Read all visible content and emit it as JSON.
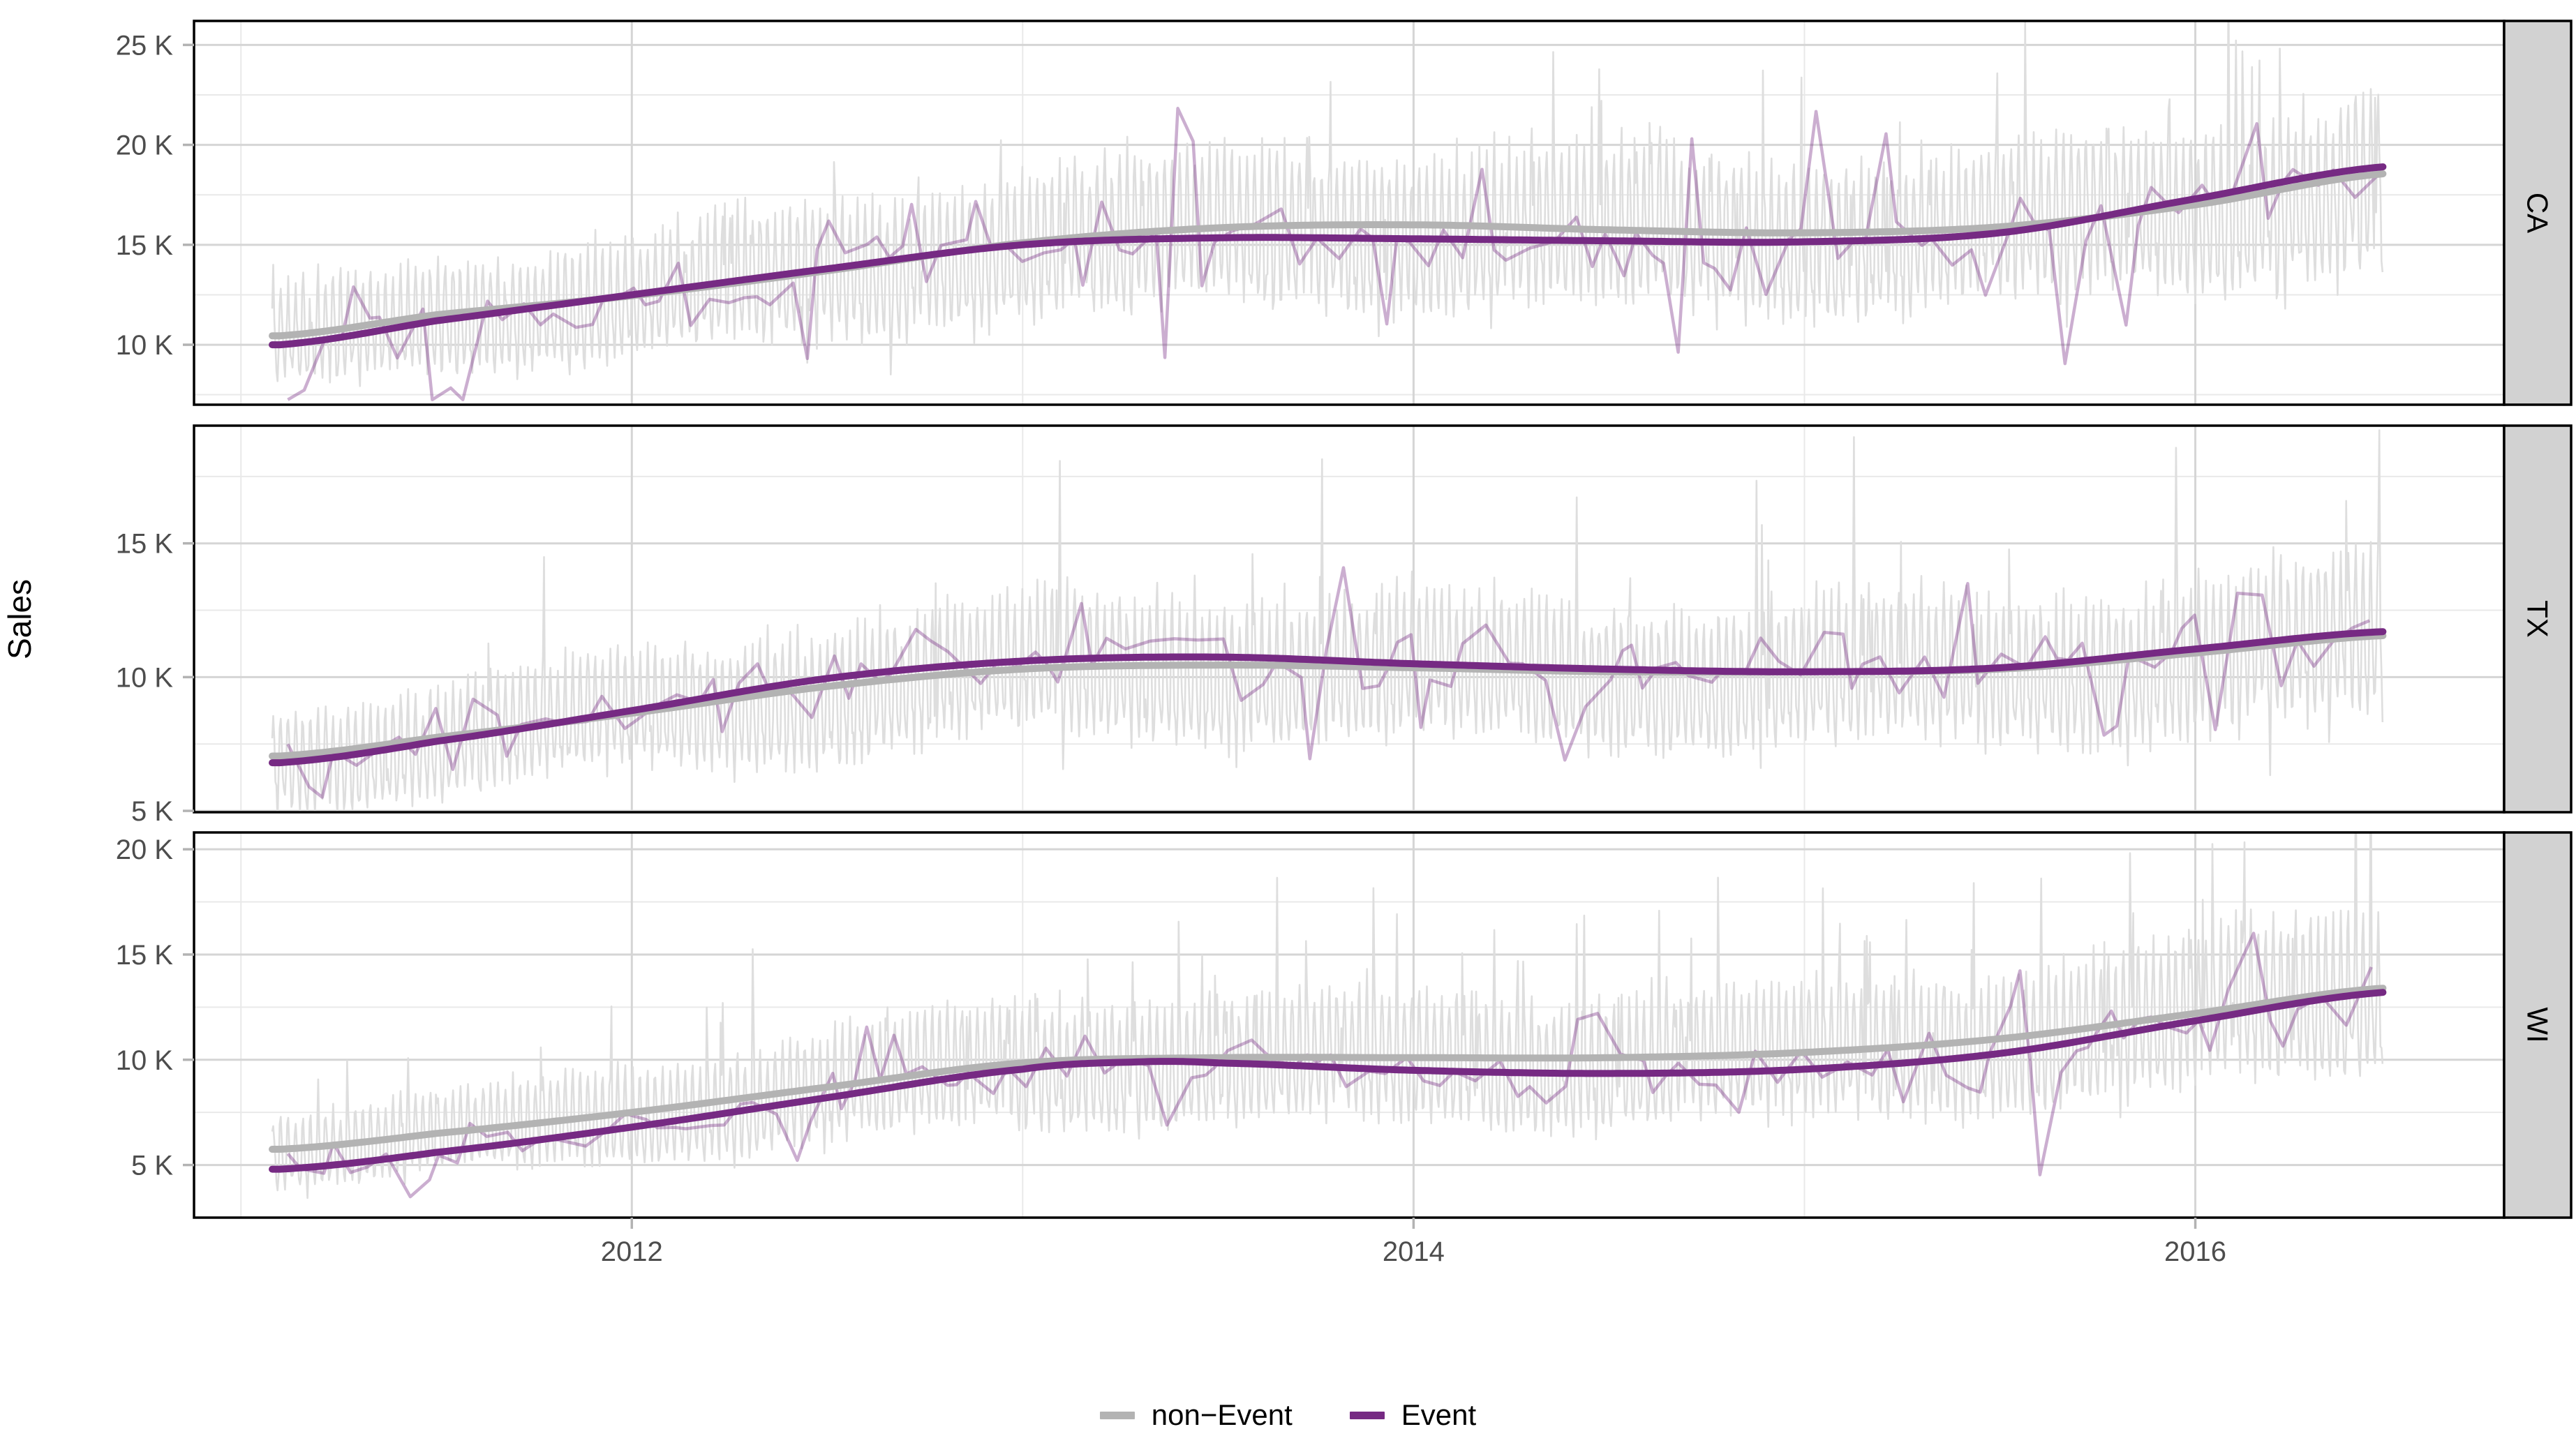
{
  "ylabel": "Sales",
  "legend": {
    "items": [
      {
        "label": "non−Event",
        "color": "#b3b3b3"
      },
      {
        "label": "Event",
        "color": "#762a83"
      }
    ]
  },
  "chart_data": {
    "type": "line",
    "title": "",
    "xlabel": "",
    "ylabel": "Sales",
    "legend_position": "bottom",
    "grid": true,
    "xlim": [
      2010.88,
      2016.79
    ],
    "x_data_range": [
      2011.08,
      2016.48
    ],
    "x_major_ticks": [
      2012,
      2014,
      2016
    ],
    "x_minor_ticks": [
      2011,
      2013,
      2015
    ],
    "y_tick_suffix": " K",
    "colors": {
      "non_event_trend": "#b3b3b3",
      "non_event_daily": "#dedede",
      "event_trend": "#762a83",
      "event_line_opacity": 0.38,
      "grid_major": "#d5d5d5",
      "grid_minor": "#e9e9e9",
      "panel_border": "#000000",
      "strip_bg": "#d2d2d2",
      "axis_text": "#4d4d4d",
      "tick_mark": "#b3b3b3"
    },
    "weekly_pattern": [
      0.16,
      0.26,
      0.08,
      -0.1,
      -0.2,
      -0.26,
      -0.12
    ],
    "facets": [
      {
        "label": "CA",
        "ylim": [
          7.0,
          26.2
        ],
        "yticks": [
          10,
          15,
          20,
          25
        ],
        "trend_non_event": [
          [
            2011.1,
            10.45
          ],
          [
            2011.5,
            11.5
          ],
          [
            2012,
            12.45
          ],
          [
            2012.5,
            13.7
          ],
          [
            2013,
            15.1
          ],
          [
            2013.5,
            15.85
          ],
          [
            2014,
            16.0
          ],
          [
            2014.5,
            15.75
          ],
          [
            2015,
            15.6
          ],
          [
            2015.5,
            15.9
          ],
          [
            2016,
            17.0
          ],
          [
            2016.48,
            18.55
          ]
        ],
        "trend_event": [
          [
            2011.1,
            10.0
          ],
          [
            2011.5,
            11.2
          ],
          [
            2012,
            12.5
          ],
          [
            2012.5,
            13.8
          ],
          [
            2013,
            15.0
          ],
          [
            2013.5,
            15.35
          ],
          [
            2014,
            15.3
          ],
          [
            2014.5,
            15.2
          ],
          [
            2015,
            15.15
          ],
          [
            2015.5,
            15.6
          ],
          [
            2016,
            17.3
          ],
          [
            2016.48,
            18.9
          ]
        ],
        "noise": {
          "seed": 1042,
          "week_amp": 0.85,
          "sd": 0.05,
          "spike_p": 0.012,
          "spike_m": 0.3,
          "dip_p": 0.008,
          "dip_m": 0.16,
          "wobble": 0.035,
          "wobble_phase": 0.2,
          "event_sd": 0.13,
          "event_dip_p": 0.06,
          "event_dip_m": 0.35,
          "event_peak_p": 0.05,
          "event_peak_m": 0.3
        }
      },
      {
        "label": "TX",
        "ylim": [
          4.95,
          19.4
        ],
        "yticks": [
          5,
          10,
          15
        ],
        "trend_non_event": [
          [
            2011.1,
            7.05
          ],
          [
            2011.5,
            7.75
          ],
          [
            2012,
            8.65
          ],
          [
            2012.5,
            9.65
          ],
          [
            2013,
            10.3
          ],
          [
            2013.5,
            10.45
          ],
          [
            2014,
            10.35
          ],
          [
            2014.5,
            10.2
          ],
          [
            2015,
            10.2
          ],
          [
            2015.5,
            10.3
          ],
          [
            2016,
            10.9
          ],
          [
            2016.48,
            11.55
          ]
        ],
        "trend_event": [
          [
            2011.1,
            6.8
          ],
          [
            2011.5,
            7.6
          ],
          [
            2012,
            8.75
          ],
          [
            2012.5,
            9.95
          ],
          [
            2013,
            10.6
          ],
          [
            2013.5,
            10.75
          ],
          [
            2014,
            10.5
          ],
          [
            2014.5,
            10.3
          ],
          [
            2015,
            10.2
          ],
          [
            2015.5,
            10.35
          ],
          [
            2016,
            11.05
          ],
          [
            2016.48,
            11.7
          ]
        ],
        "noise": {
          "seed": 2119,
          "week_amp": 0.9,
          "sd": 0.055,
          "spike_p": 0.01,
          "spike_m": 0.45,
          "dip_p": 0.008,
          "dip_m": 0.16,
          "wobble": 0.04,
          "wobble_phase": 0.55,
          "event_sd": 0.12,
          "event_dip_p": 0.05,
          "event_dip_m": 0.35,
          "event_peak_p": 0.05,
          "event_peak_m": 0.22
        }
      },
      {
        "label": "WI",
        "ylim": [
          2.5,
          20.8
        ],
        "yticks": [
          5,
          10,
          15,
          20
        ],
        "trend_non_event": [
          [
            2011.1,
            5.75
          ],
          [
            2011.5,
            6.5
          ],
          [
            2012,
            7.5
          ],
          [
            2012.5,
            8.7
          ],
          [
            2013,
            9.85
          ],
          [
            2013.5,
            10.1
          ],
          [
            2014,
            10.1
          ],
          [
            2014.5,
            10.1
          ],
          [
            2015,
            10.35
          ],
          [
            2015.5,
            11.0
          ],
          [
            2016,
            12.2
          ],
          [
            2016.48,
            13.4
          ]
        ],
        "trend_event": [
          [
            2011.1,
            4.8
          ],
          [
            2011.5,
            5.6
          ],
          [
            2012,
            6.8
          ],
          [
            2012.5,
            8.2
          ],
          [
            2013,
            9.55
          ],
          [
            2013.3,
            9.9
          ],
          [
            2013.5,
            9.85
          ],
          [
            2014,
            9.5
          ],
          [
            2014.5,
            9.35
          ],
          [
            2015,
            9.55
          ],
          [
            2015.5,
            10.3
          ],
          [
            2016,
            11.85
          ],
          [
            2016.48,
            13.2
          ]
        ],
        "noise": {
          "seed": 3557,
          "week_amp": 1.05,
          "sd": 0.06,
          "spike_p": 0.018,
          "spike_m": 0.45,
          "dip_p": 0.006,
          "dip_m": 0.16,
          "wobble": 0.04,
          "wobble_phase": 0.8,
          "event_sd": 0.13,
          "event_dip_p": 0.06,
          "event_dip_m": 0.45,
          "event_peak_p": 0.05,
          "event_peak_m": 0.25
        }
      }
    ]
  }
}
